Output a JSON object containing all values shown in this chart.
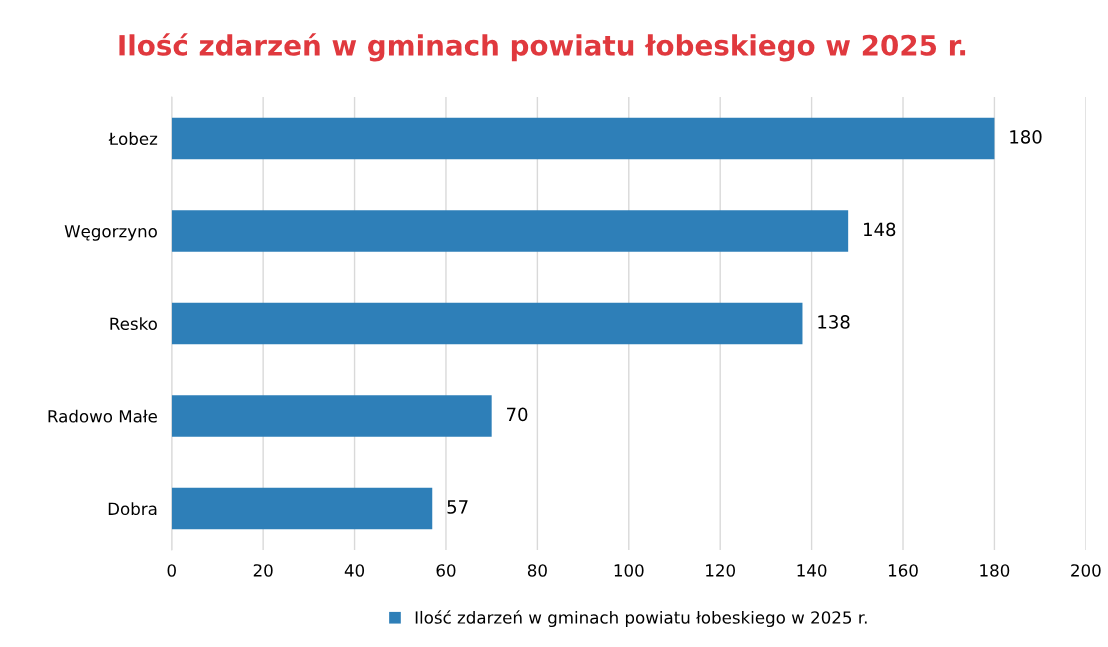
{
  "chart_data": {
    "type": "bar",
    "orientation": "horizontal",
    "title": "Ilość zdarzeń w gminach powiatu łobeskiego w 2025 r.",
    "categories": [
      "Łobez",
      "Węgorzyno",
      "Resko",
      "Radowo Małe",
      "Dobra"
    ],
    "series": [
      {
        "name": "Ilość zdarzeń w gminach powiatu łobeskiego w 2025 r.",
        "color": "#2e7fb8",
        "values": [
          180,
          148,
          138,
          70,
          57
        ]
      }
    ],
    "xlim": [
      0,
      200
    ],
    "xticks": [
      0,
      20,
      40,
      60,
      80,
      100,
      120,
      140,
      160,
      180,
      200
    ],
    "grid": "x",
    "legend": "bottom",
    "data_labels": true
  }
}
